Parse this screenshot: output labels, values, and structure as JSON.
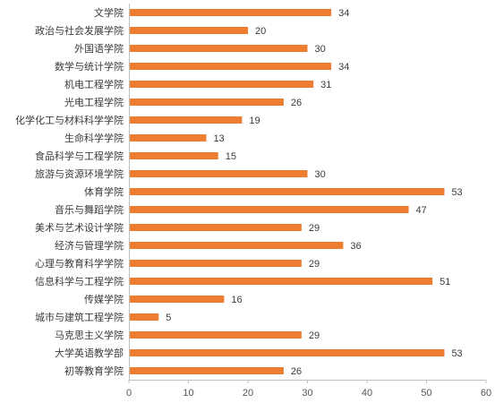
{
  "chart_data": {
    "type": "bar",
    "orientation": "horizontal",
    "title": "",
    "xlabel": "",
    "ylabel": "",
    "xlim": [
      0,
      60
    ],
    "xticks": [
      0,
      10,
      20,
      30,
      40,
      50,
      60
    ],
    "grid": false,
    "legend": "none",
    "bar_color": "#ED7D31",
    "categories": [
      "文学院",
      "政治与社会发展学院",
      "外国语学院",
      "数学与统计学院",
      "机电工程学院",
      "光电工程学院",
      "化学化工与材料科学学院",
      "生命科学学院",
      "食品科学与工程学院",
      "旅游与资源环境学院",
      "体育学院",
      "音乐与舞蹈学院",
      "美术与艺术设计学院",
      "经济与管理学院",
      "心理与教育科学学院",
      "信息科学与工程学院",
      "传媒学院",
      "城市与建筑工程学院",
      "马克思主义学院",
      "大学英语教学部",
      "初等教育学院"
    ],
    "values": [
      34,
      20,
      30,
      34,
      31,
      26,
      19,
      13,
      15,
      30,
      53,
      47,
      29,
      36,
      29,
      51,
      16,
      5,
      29,
      53,
      26
    ]
  }
}
